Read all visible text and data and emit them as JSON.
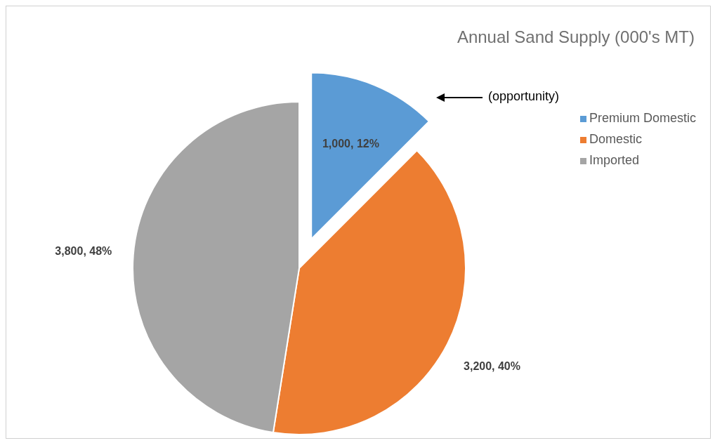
{
  "chart_data": {
    "type": "pie",
    "title": "Annual Sand Supply (000's MT)",
    "categories": [
      "Premium Domestic",
      "Domestic",
      "Imported"
    ],
    "values": [
      1000,
      3200,
      3800
    ],
    "colors": [
      "#5b9bd5",
      "#ed7d31",
      "#a5a5a5"
    ],
    "value_labels": [
      "1,000, 12%",
      "3,200, 40%",
      "3,800, 48%"
    ],
    "legend": "right",
    "annotations": [
      "(opportunity)"
    ]
  }
}
